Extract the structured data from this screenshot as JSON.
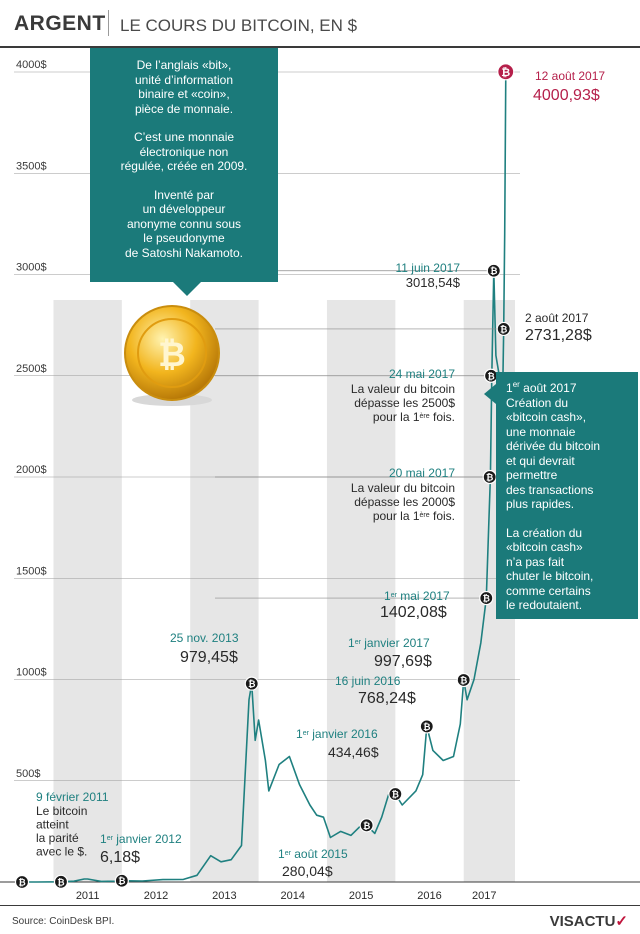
{
  "header": {
    "section": "ARGENT",
    "title": "LE COURS DU BITCOIN, EN $"
  },
  "chart_data": {
    "type": "line",
    "x_unit": "year",
    "ylim": [
      0,
      4000
    ],
    "yticks": [
      {
        "value": 500,
        "label": "500$"
      },
      {
        "value": 1000,
        "label": "1000$"
      },
      {
        "value": 1500,
        "label": "1500$"
      },
      {
        "value": 2000,
        "label": "2000$"
      },
      {
        "value": 2500,
        "label": "2500$"
      },
      {
        "value": 3000,
        "label": "3000$"
      },
      {
        "value": 3500,
        "label": "3500$"
      },
      {
        "value": 4000,
        "label": "4000$"
      }
    ],
    "xticks": [
      {
        "value": 2011.5,
        "label": "2011"
      },
      {
        "value": 2012.5,
        "label": "2012"
      },
      {
        "value": 2013.5,
        "label": "2013"
      },
      {
        "value": 2014.5,
        "label": "2014"
      },
      {
        "value": 2015.5,
        "label": "2015"
      },
      {
        "value": 2016.5,
        "label": "2016"
      },
      {
        "value": 2017.3,
        "label": "2017"
      }
    ],
    "grid": true,
    "series": [
      {
        "points": [
          [
            2010.54,
            0
          ],
          [
            2010.75,
            0.1
          ],
          [
            2011.11,
            1
          ],
          [
            2011.3,
            4
          ],
          [
            2011.45,
            15
          ],
          [
            2011.5,
            15
          ],
          [
            2011.7,
            3
          ],
          [
            2011.9,
            4
          ],
          [
            2012.0,
            6.18
          ],
          [
            2012.3,
            5
          ],
          [
            2012.6,
            12
          ],
          [
            2012.9,
            13
          ],
          [
            2013.1,
            33
          ],
          [
            2013.3,
            130
          ],
          [
            2013.45,
            100
          ],
          [
            2013.6,
            110
          ],
          [
            2013.75,
            180
          ],
          [
            2013.86,
            900
          ],
          [
            2013.9,
            979.45
          ],
          [
            2013.95,
            700
          ],
          [
            2014.0,
            800
          ],
          [
            2014.1,
            600
          ],
          [
            2014.15,
            450
          ],
          [
            2014.3,
            580
          ],
          [
            2014.45,
            620
          ],
          [
            2014.6,
            480
          ],
          [
            2014.75,
            380
          ],
          [
            2014.85,
            330
          ],
          [
            2014.95,
            320
          ],
          [
            2015.05,
            220
          ],
          [
            2015.2,
            250
          ],
          [
            2015.35,
            230
          ],
          [
            2015.5,
            280
          ],
          [
            2015.58,
            280.04
          ],
          [
            2015.7,
            240
          ],
          [
            2015.8,
            320
          ],
          [
            2015.9,
            430
          ],
          [
            2016.0,
            434.46
          ],
          [
            2016.1,
            380
          ],
          [
            2016.3,
            450
          ],
          [
            2016.4,
            530
          ],
          [
            2016.46,
            768.24
          ],
          [
            2016.55,
            650
          ],
          [
            2016.7,
            600
          ],
          [
            2016.85,
            620
          ],
          [
            2016.95,
            780
          ],
          [
            2017.0,
            997.69
          ],
          [
            2017.05,
            900
          ],
          [
            2017.15,
            1000
          ],
          [
            2017.25,
            1180
          ],
          [
            2017.33,
            1402.08
          ],
          [
            2017.37,
            1800
          ],
          [
            2017.39,
            2000
          ],
          [
            2017.41,
            2500
          ],
          [
            2017.44,
            3018.54
          ],
          [
            2017.47,
            2600
          ],
          [
            2017.52,
            2500
          ],
          [
            2017.56,
            2200
          ],
          [
            2017.585,
            2731.28
          ],
          [
            2017.6,
            3200
          ],
          [
            2017.615,
            4000.93
          ]
        ]
      }
    ],
    "events": [
      {
        "x": 2010.54,
        "y": 0
      },
      {
        "x": 2011.11,
        "y": 1,
        "date": "9 février 2011",
        "text": [
          "Le bitcoin",
          "atteint",
          "la parité",
          "avec le $."
        ]
      },
      {
        "x": 2012.0,
        "y": 6.18,
        "date_main": "1",
        "date_sup": "er",
        "date_rest": " janvier 2012",
        "value": "6,18$"
      },
      {
        "x": 2013.9,
        "y": 979.45,
        "date": "25 nov. 2013",
        "value": "979,45$"
      },
      {
        "x": 2015.58,
        "y": 280.04,
        "date_main": "1",
        "date_sup": "er",
        "date_rest": " août 2015",
        "value": "280,04$"
      },
      {
        "x": 2016.0,
        "y": 434.46,
        "date_main": "1",
        "date_sup": "er",
        "date_rest": " janvier 2016",
        "value": "434,46$"
      },
      {
        "x": 2016.46,
        "y": 768.24,
        "date": "16 juin 2016",
        "value": "768,24$"
      },
      {
        "x": 2017.0,
        "y": 997.69,
        "date_main": "1",
        "date_sup": "er",
        "date_rest": " janvier 2017",
        "value": "997,69$"
      },
      {
        "x": 2017.33,
        "y": 1402.08,
        "date_main": "1",
        "date_sup": "er",
        "date_rest": " mai 2017",
        "value": "1402,08$"
      },
      {
        "x": 2017.38,
        "y": 2000,
        "date": "20 mai 2017",
        "text_lines": [
          "La valeur du bitcoin",
          "dépasse les 2000$"
        ],
        "text_last_main": "pour la 1",
        "text_last_sup": "ère",
        "text_last_rest": " fois."
      },
      {
        "x": 2017.4,
        "y": 2500,
        "date": "24 mai 2017",
        "text_lines": [
          "La valeur du bitcoin",
          "dépasse les 2500$"
        ],
        "text_last_main": "pour la 1",
        "text_last_sup": "ère",
        "text_last_rest": " fois."
      },
      {
        "x": 2017.44,
        "y": 3018.54,
        "date": "11 juin 2017",
        "value": "3018,54$"
      },
      {
        "x": 2017.585,
        "y": 2731.28,
        "date": "2 août 2017",
        "value": "2731,28$"
      },
      {
        "x": 2017.615,
        "y": 4000.93,
        "date": "12 août 2017",
        "value": "4000,93$"
      }
    ]
  },
  "box_definition": {
    "paragraphs": [
      [
        "De l’anglais «bit»,",
        "unité d’information",
        "binaire et «coin»,",
        "pièce de monnaie."
      ],
      [
        "C’est une monnaie",
        "électronique non",
        "régulée, créée en 2009."
      ],
      [
        "Inventé par",
        "un développeur",
        "anonyme connu sous",
        "le pseudonyme",
        "de Satoshi Nakamoto."
      ]
    ]
  },
  "box_fork": {
    "date_main": "1",
    "date_sup": "er",
    "date_rest": " août 2017",
    "paragraphs": [
      [
        "Création du",
        "«bitcoin cash»,",
        "une monnaie",
        "dérivée du bitcoin",
        "et qui devrait",
        "permettre",
        "des transactions",
        "plus rapides."
      ],
      [
        "La création du",
        "«bitcoin cash»",
        "n’a pas fait",
        "chuter le bitcoin,",
        "comme certains",
        "le redoutaient."
      ]
    ]
  },
  "footer": {
    "source": "Source: CoinDesk BPI.",
    "logo_main": "VISACTU",
    "logo_accent": "✓"
  },
  "colors": {
    "line": "#1f8080",
    "marker": "#1a1a1a",
    "accent": "#b51f4a",
    "teal_box": "#1b7a7a",
    "band": "#e6e6e6"
  }
}
